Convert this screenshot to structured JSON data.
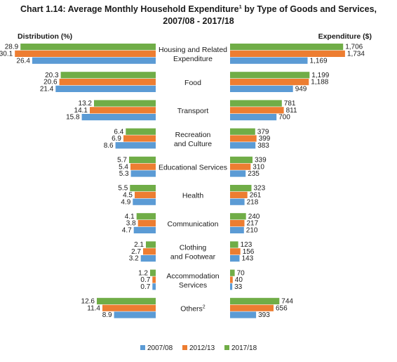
{
  "chart_data": {
    "type": "bar",
    "title_main": "Chart 1.14: Average Monthly Household Expenditure",
    "title_sup": "1",
    "title_rest": " by Type of Goods and Services,",
    "title_line2": "2007/08 - 2017/18",
    "left_axis_label": "Distribution (%)",
    "right_axis_label": "Expenditure ($)",
    "series_names": [
      "2007/08",
      "2012/13",
      "2017/18"
    ],
    "colors": {
      "2007/08": "#5b9bd5",
      "2012/13": "#ed7d31",
      "2017/18": "#70ad47"
    },
    "categories": [
      {
        "lines": [
          "Housing and Related",
          "Expenditure"
        ],
        "sup": "",
        "distribution": {
          "2007/08": 26.4,
          "2012/13": 30.1,
          "2017/18": 28.9
        },
        "expenditure": {
          "2007/08": "1,169",
          "2012/13": "1,734",
          "2017/18": "1,706"
        }
      },
      {
        "lines": [
          "Food"
        ],
        "sup": "",
        "distribution": {
          "2007/08": 21.4,
          "2012/13": 20.6,
          "2017/18": 20.3
        },
        "expenditure": {
          "2007/08": "949",
          "2012/13": "1,188",
          "2017/18": "1,199"
        }
      },
      {
        "lines": [
          "Transport"
        ],
        "sup": "",
        "distribution": {
          "2007/08": 15.8,
          "2012/13": 14.1,
          "2017/18": 13.2
        },
        "expenditure": {
          "2007/08": "700",
          "2012/13": "811",
          "2017/18": "781"
        }
      },
      {
        "lines": [
          "Recreation",
          "and Culture"
        ],
        "sup": "",
        "distribution": {
          "2007/08": 8.6,
          "2012/13": 6.9,
          "2017/18": 6.4
        },
        "expenditure": {
          "2007/08": "383",
          "2012/13": "399",
          "2017/18": "379"
        }
      },
      {
        "lines": [
          "Educational Services"
        ],
        "sup": "",
        "distribution": {
          "2007/08": 5.3,
          "2012/13": 5.4,
          "2017/18": 5.7
        },
        "expenditure": {
          "2007/08": "235",
          "2012/13": "310",
          "2017/18": "339"
        }
      },
      {
        "lines": [
          "Health"
        ],
        "sup": "",
        "distribution": {
          "2007/08": 4.9,
          "2012/13": 4.5,
          "2017/18": 5.5
        },
        "expenditure": {
          "2007/08": "218",
          "2012/13": "261",
          "2017/18": "323"
        }
      },
      {
        "lines": [
          "Communication"
        ],
        "sup": "",
        "distribution": {
          "2007/08": 4.7,
          "2012/13": 3.8,
          "2017/18": 4.1
        },
        "expenditure": {
          "2007/08": "210",
          "2012/13": "217",
          "2017/18": "240"
        }
      },
      {
        "lines": [
          "Clothing",
          "and Footwear"
        ],
        "sup": "",
        "distribution": {
          "2007/08": 3.2,
          "2012/13": 2.7,
          "2017/18": 2.1
        },
        "expenditure": {
          "2007/08": "143",
          "2012/13": "156",
          "2017/18": "123"
        }
      },
      {
        "lines": [
          "Accommodation",
          "Services"
        ],
        "sup": "",
        "distribution": {
          "2007/08": 0.7,
          "2012/13": 0.7,
          "2017/18": 1.2
        },
        "expenditure": {
          "2007/08": "33",
          "2012/13": "40",
          "2017/18": "70"
        }
      },
      {
        "lines": [
          "Others"
        ],
        "sup": "2",
        "distribution": {
          "2007/08": 8.9,
          "2012/13": 11.4,
          "2017/18": 12.6
        },
        "expenditure": {
          "2007/08": "393",
          "2012/13": "656",
          "2017/18": "744"
        }
      }
    ],
    "legend_placement": "bottom-center",
    "grid": false
  }
}
